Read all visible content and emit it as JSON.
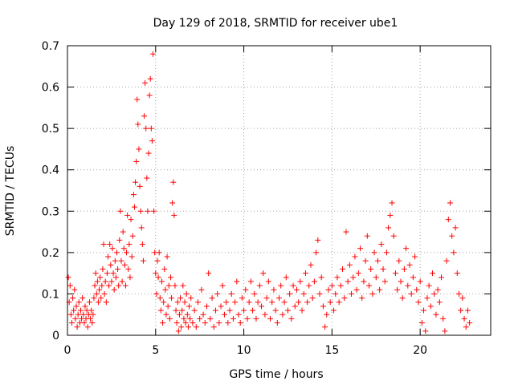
{
  "chart_data": {
    "type": "scatter",
    "title": "Day 129 of 2018, SRMTID for receiver ube1",
    "xlabel": "GPS time / hours",
    "ylabel": "SRMTID / TECUs",
    "xlim": [
      0,
      24
    ],
    "ylim": [
      0,
      0.7
    ],
    "xticks": [
      0,
      5,
      10,
      15,
      20
    ],
    "xtick_labels": [
      "0",
      "5",
      "10",
      "15",
      "20"
    ],
    "yticks": [
      0,
      0.1,
      0.2,
      0.3,
      0.4,
      0.5,
      0.6,
      0.7
    ],
    "ytick_labels": [
      "0",
      "0.1",
      "0.2",
      "0.3",
      "0.4",
      "0.5",
      "0.6",
      "0.7"
    ],
    "grid": true,
    "marker": "+",
    "color": "#ff0000",
    "series": [
      {
        "name": "SRMTID",
        "points": [
          [
            0.05,
            0.14
          ],
          [
            0.1,
            0.08
          ],
          [
            0.15,
            0.12
          ],
          [
            0.2,
            0.05
          ],
          [
            0.25,
            0.03
          ],
          [
            0.3,
            0.09
          ],
          [
            0.35,
            0.06
          ],
          [
            0.4,
            0.11
          ],
          [
            0.45,
            0.04
          ],
          [
            0.5,
            0.07
          ],
          [
            0.55,
            0.02
          ],
          [
            0.6,
            0.05
          ],
          [
            0.65,
            0.08
          ],
          [
            0.7,
            0.03
          ],
          [
            0.75,
            0.06
          ],
          [
            0.8,
            0.04
          ],
          [
            0.85,
            0.09
          ],
          [
            0.9,
            0.05
          ],
          [
            0.95,
            0.03
          ],
          [
            1.0,
            0.07
          ],
          [
            1.05,
            0.04
          ],
          [
            1.1,
            0.06
          ],
          [
            1.15,
            0.02
          ],
          [
            1.2,
            0.05
          ],
          [
            1.25,
            0.08
          ],
          [
            1.3,
            0.04
          ],
          [
            1.35,
            0.06
          ],
          [
            1.4,
            0.03
          ],
          [
            1.45,
            0.05
          ],
          [
            1.5,
            0.09
          ],
          [
            1.55,
            0.12
          ],
          [
            1.6,
            0.15
          ],
          [
            1.65,
            0.1
          ],
          [
            1.7,
            0.13
          ],
          [
            1.75,
            0.08
          ],
          [
            1.8,
            0.11
          ],
          [
            1.85,
            0.14
          ],
          [
            1.9,
            0.09
          ],
          [
            1.95,
            0.12
          ],
          [
            2.0,
            0.16
          ],
          [
            2.05,
            0.22
          ],
          [
            2.1,
            0.1
          ],
          [
            2.15,
            0.13
          ],
          [
            2.2,
            0.08
          ],
          [
            2.25,
            0.15
          ],
          [
            2.3,
            0.19
          ],
          [
            2.35,
            0.12
          ],
          [
            2.4,
            0.22
          ],
          [
            2.45,
            0.17
          ],
          [
            2.5,
            0.13
          ],
          [
            2.55,
            0.21
          ],
          [
            2.6,
            0.15
          ],
          [
            2.65,
            0.11
          ],
          [
            2.7,
            0.18
          ],
          [
            2.75,
            0.14
          ],
          [
            2.8,
            0.2
          ],
          [
            2.85,
            0.16
          ],
          [
            2.9,
            0.12
          ],
          [
            2.95,
            0.23
          ],
          [
            3.0,
            0.3
          ],
          [
            3.05,
            0.18
          ],
          [
            3.1,
            0.13
          ],
          [
            3.15,
            0.25
          ],
          [
            3.2,
            0.21
          ],
          [
            3.25,
            0.17
          ],
          [
            3.3,
            0.12
          ],
          [
            3.35,
            0.2
          ],
          [
            3.4,
            0.29
          ],
          [
            3.45,
            0.16
          ],
          [
            3.5,
            0.22
          ],
          [
            3.55,
            0.14
          ],
          [
            3.6,
            0.28
          ],
          [
            3.65,
            0.19
          ],
          [
            3.7,
            0.24
          ],
          [
            3.75,
            0.34
          ],
          [
            3.8,
            0.31
          ],
          [
            3.85,
            0.37
          ],
          [
            3.9,
            0.42
          ],
          [
            3.95,
            0.57
          ],
          [
            4.0,
            0.51
          ],
          [
            4.05,
            0.45
          ],
          [
            4.1,
            0.36
          ],
          [
            4.15,
            0.3
          ],
          [
            4.2,
            0.26
          ],
          [
            4.25,
            0.22
          ],
          [
            4.3,
            0.18
          ],
          [
            4.35,
            0.53
          ],
          [
            4.4,
            0.61
          ],
          [
            4.45,
            0.5
          ],
          [
            4.5,
            0.38
          ],
          [
            4.55,
            0.3
          ],
          [
            4.6,
            0.44
          ],
          [
            4.65,
            0.58
          ],
          [
            4.7,
            0.62
          ],
          [
            4.75,
            0.5
          ],
          [
            4.8,
            0.47
          ],
          [
            4.85,
            0.68
          ],
          [
            4.9,
            0.3
          ],
          [
            4.95,
            0.2
          ],
          [
            5.0,
            0.15
          ],
          [
            5.05,
            0.1
          ],
          [
            5.1,
            0.18
          ],
          [
            5.15,
            0.14
          ],
          [
            5.2,
            0.2
          ],
          [
            5.25,
            0.09
          ],
          [
            5.3,
            0.06
          ],
          [
            5.35,
            0.13
          ],
          [
            5.4,
            0.03
          ],
          [
            5.45,
            0.08
          ],
          [
            5.5,
            0.16
          ],
          [
            5.55,
            0.11
          ],
          [
            5.6,
            0.05
          ],
          [
            5.65,
            0.19
          ],
          [
            5.7,
            0.07
          ],
          [
            5.75,
            0.12
          ],
          [
            5.8,
            0.04
          ],
          [
            5.85,
            0.14
          ],
          [
            5.9,
            0.09
          ],
          [
            5.95,
            0.32
          ],
          [
            6.0,
            0.37
          ],
          [
            6.05,
            0.29
          ],
          [
            6.1,
            0.12
          ],
          [
            6.15,
            0.06
          ],
          [
            6.2,
            0.03
          ],
          [
            6.25,
            0.08
          ],
          [
            6.3,
            0.01
          ],
          [
            6.35,
            0.05
          ],
          [
            6.4,
            0.09
          ],
          [
            6.45,
            0.02
          ],
          [
            6.5,
            0.06
          ],
          [
            6.55,
            0.12
          ],
          [
            6.6,
            0.04
          ],
          [
            6.65,
            0.08
          ],
          [
            6.7,
            0.03
          ],
          [
            6.75,
            0.1
          ],
          [
            6.8,
            0.05
          ],
          [
            6.85,
            0.02
          ],
          [
            6.9,
            0.07
          ],
          [
            6.95,
            0.04
          ],
          [
            7.0,
            0.09
          ],
          [
            7.1,
            0.03
          ],
          [
            7.2,
            0.06
          ],
          [
            7.3,
            0.02
          ],
          [
            7.4,
            0.08
          ],
          [
            7.5,
            0.04
          ],
          [
            7.6,
            0.11
          ],
          [
            7.7,
            0.05
          ],
          [
            7.8,
            0.03
          ],
          [
            7.9,
            0.07
          ],
          [
            8.0,
            0.15
          ],
          [
            8.1,
            0.04
          ],
          [
            8.2,
            0.09
          ],
          [
            8.3,
            0.02
          ],
          [
            8.4,
            0.06
          ],
          [
            8.5,
            0.1
          ],
          [
            8.6,
            0.03
          ],
          [
            8.7,
            0.07
          ],
          [
            8.8,
            0.12
          ],
          [
            8.9,
            0.05
          ],
          [
            9.0,
            0.08
          ],
          [
            9.1,
            0.03
          ],
          [
            9.2,
            0.06
          ],
          [
            9.3,
            0.1
          ],
          [
            9.4,
            0.04
          ],
          [
            9.5,
            0.08
          ],
          [
            9.6,
            0.13
          ],
          [
            9.7,
            0.05
          ],
          [
            9.8,
            0.03
          ],
          [
            9.9,
            0.09
          ],
          [
            10.0,
            0.06
          ],
          [
            10.1,
            0.11
          ],
          [
            10.2,
            0.04
          ],
          [
            10.3,
            0.08
          ],
          [
            10.4,
            0.13
          ],
          [
            10.5,
            0.06
          ],
          [
            10.6,
            0.1
          ],
          [
            10.7,
            0.04
          ],
          [
            10.8,
            0.08
          ],
          [
            10.9,
            0.12
          ],
          [
            11.0,
            0.07
          ],
          [
            11.1,
            0.15
          ],
          [
            11.2,
            0.05
          ],
          [
            11.3,
            0.09
          ],
          [
            11.4,
            0.13
          ],
          [
            11.5,
            0.04
          ],
          [
            11.6,
            0.08
          ],
          [
            11.7,
            0.11
          ],
          [
            11.8,
            0.06
          ],
          [
            11.9,
            0.03
          ],
          [
            12.0,
            0.09
          ],
          [
            12.1,
            0.12
          ],
          [
            12.2,
            0.05
          ],
          [
            12.3,
            0.08
          ],
          [
            12.4,
            0.14
          ],
          [
            12.5,
            0.06
          ],
          [
            12.6,
            0.1
          ],
          [
            12.7,
            0.04
          ],
          [
            12.8,
            0.12
          ],
          [
            12.9,
            0.07
          ],
          [
            13.0,
            0.11
          ],
          [
            13.1,
            0.08
          ],
          [
            13.2,
            0.13
          ],
          [
            13.3,
            0.06
          ],
          [
            13.4,
            0.1
          ],
          [
            13.5,
            0.15
          ],
          [
            13.6,
            0.08
          ],
          [
            13.7,
            0.12
          ],
          [
            13.8,
            0.17
          ],
          [
            13.9,
            0.09
          ],
          [
            14.0,
            0.13
          ],
          [
            14.1,
            0.2
          ],
          [
            14.2,
            0.23
          ],
          [
            14.3,
            0.1
          ],
          [
            14.4,
            0.14
          ],
          [
            14.5,
            0.07
          ],
          [
            14.6,
            0.02
          ],
          [
            14.7,
            0.05
          ],
          [
            14.8,
            0.11
          ],
          [
            14.9,
            0.08
          ],
          [
            15.0,
            0.12
          ],
          [
            15.1,
            0.06
          ],
          [
            15.2,
            0.1
          ],
          [
            15.3,
            0.14
          ],
          [
            15.4,
            0.08
          ],
          [
            15.5,
            0.12
          ],
          [
            15.6,
            0.16
          ],
          [
            15.7,
            0.09
          ],
          [
            15.8,
            0.25
          ],
          [
            15.9,
            0.13
          ],
          [
            16.0,
            0.17
          ],
          [
            16.1,
            0.1
          ],
          [
            16.2,
            0.14
          ],
          [
            16.3,
            0.19
          ],
          [
            16.4,
            0.11
          ],
          [
            16.5,
            0.15
          ],
          [
            16.6,
            0.21
          ],
          [
            16.7,
            0.09
          ],
          [
            16.8,
            0.13
          ],
          [
            16.9,
            0.18
          ],
          [
            17.0,
            0.24
          ],
          [
            17.1,
            0.12
          ],
          [
            17.2,
            0.16
          ],
          [
            17.3,
            0.1
          ],
          [
            17.4,
            0.2
          ],
          [
            17.5,
            0.14
          ],
          [
            17.6,
            0.18
          ],
          [
            17.7,
            0.11
          ],
          [
            17.8,
            0.22
          ],
          [
            17.9,
            0.16
          ],
          [
            18.0,
            0.13
          ],
          [
            18.1,
            0.2
          ],
          [
            18.2,
            0.26
          ],
          [
            18.3,
            0.29
          ],
          [
            18.4,
            0.32
          ],
          [
            18.5,
            0.24
          ],
          [
            18.6,
            0.15
          ],
          [
            18.7,
            0.11
          ],
          [
            18.8,
            0.18
          ],
          [
            18.9,
            0.13
          ],
          [
            19.0,
            0.09
          ],
          [
            19.1,
            0.16
          ],
          [
            19.2,
            0.21
          ],
          [
            19.3,
            0.12
          ],
          [
            19.4,
            0.17
          ],
          [
            19.5,
            0.1
          ],
          [
            19.6,
            0.14
          ],
          [
            19.7,
            0.19
          ],
          [
            19.8,
            0.11
          ],
          [
            19.9,
            0.08
          ],
          [
            20.0,
            0.13
          ],
          [
            20.1,
            0.03
          ],
          [
            20.2,
            0.06
          ],
          [
            20.3,
            0.01
          ],
          [
            20.4,
            0.09
          ],
          [
            20.5,
            0.12
          ],
          [
            20.6,
            0.07
          ],
          [
            20.7,
            0.15
          ],
          [
            20.8,
            0.1
          ],
          [
            20.9,
            0.05
          ],
          [
            21.0,
            0.11
          ],
          [
            21.1,
            0.08
          ],
          [
            21.2,
            0.14
          ],
          [
            21.3,
            0.04
          ],
          [
            21.4,
            0.01
          ],
          [
            21.5,
            0.18
          ],
          [
            21.6,
            0.28
          ],
          [
            21.7,
            0.32
          ],
          [
            21.8,
            0.24
          ],
          [
            21.9,
            0.2
          ],
          [
            22.0,
            0.26
          ],
          [
            22.1,
            0.15
          ],
          [
            22.2,
            0.1
          ],
          [
            22.3,
            0.06
          ],
          [
            22.4,
            0.09
          ],
          [
            22.5,
            0.04
          ],
          [
            22.6,
            0.02
          ],
          [
            22.7,
            0.06
          ],
          [
            22.8,
            0.03
          ]
        ]
      }
    ]
  }
}
